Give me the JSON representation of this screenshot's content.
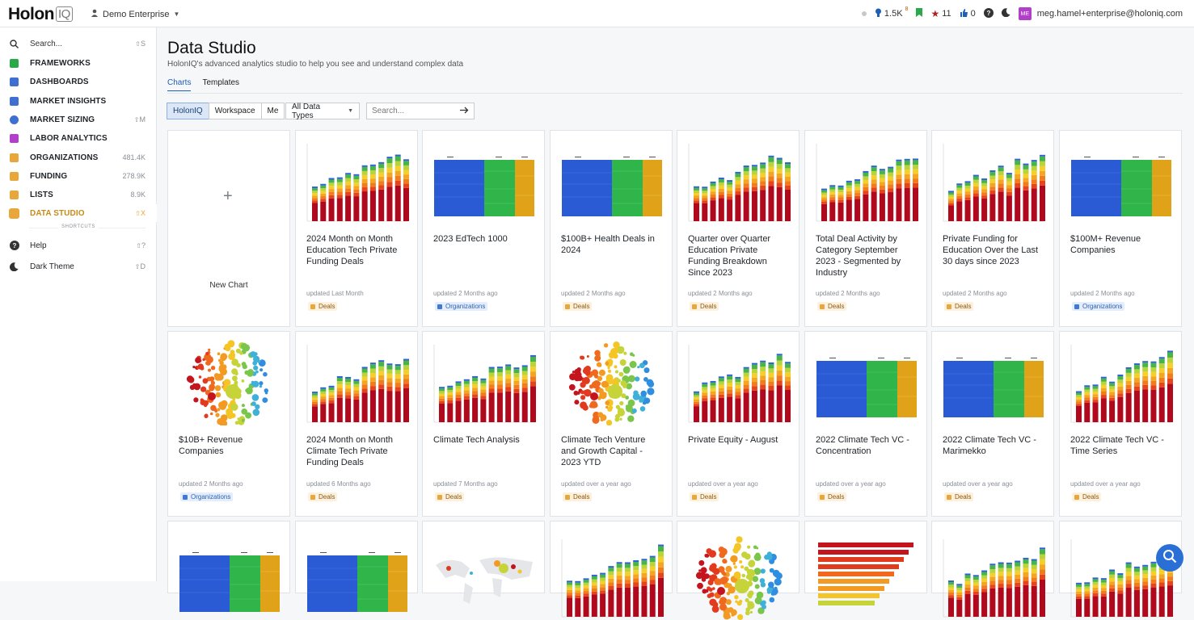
{
  "topbar": {
    "logo_main": "Holon",
    "logo_iq": "IQ",
    "enterprise": "Demo Enterprise",
    "stat_bulb": "1.5K",
    "stat_bulb_badge": "8",
    "stat_star": "11",
    "stat_thumb": "0",
    "user_initials": "ME",
    "user_email": "meg.hamel+enterprise@holoniq.com"
  },
  "sidebar": {
    "search_label": "Search...",
    "search_key": "S",
    "items": [
      {
        "label": "FRAMEWORKS",
        "meta": "",
        "color": "#2aa84a",
        "icon": "grid-icon"
      },
      {
        "label": "DASHBOARDS",
        "meta": "",
        "color": "#3f6fd1",
        "icon": "dashboard-icon"
      },
      {
        "label": "MARKET INSIGHTS",
        "meta": "",
        "color": "#3f6fd1",
        "icon": "insights-icon"
      },
      {
        "label": "MARKET SIZING",
        "meta": "M",
        "color": "#3f6fd1",
        "icon": "pie-icon"
      },
      {
        "label": "LABOR ANALYTICS",
        "meta": "",
        "color": "#b13fc9",
        "icon": "people-icon"
      },
      {
        "label": "ORGANIZATIONS",
        "meta": "481.4K",
        "color": "#e7a73a",
        "icon": "building-icon"
      },
      {
        "label": "FUNDING",
        "meta": "278.9K",
        "color": "#e7a73a",
        "icon": "funding-icon"
      },
      {
        "label": "LISTS",
        "meta": "8.9K",
        "color": "#e7a73a",
        "icon": "list-icon"
      },
      {
        "label": "DATA STUDIO",
        "meta": "X",
        "color": "#e7a73a",
        "icon": "chart-icon"
      }
    ],
    "shortcuts_label": "SHORTCUTS",
    "help_label": "Help",
    "help_key": "?",
    "dark_label": "Dark Theme",
    "dark_key": "D"
  },
  "main": {
    "title": "Data Studio",
    "subtitle": "HolonIQ's advanced analytics studio to help you see and understand complex data",
    "tabs": [
      "Charts",
      "Templates"
    ],
    "filters": [
      "HolonIQ",
      "Workspace",
      "Me"
    ],
    "data_type": "All Data Types",
    "search_placeholder": "Search...",
    "new_chart_label": "New Chart"
  },
  "cards": [
    {
      "title": "2024 Month on Month Education Tech Private Funding Deals",
      "updated": "updated Last Month",
      "tag": "Deals",
      "thumb": "bars"
    },
    {
      "title": "2023 EdTech 1000",
      "updated": "updated 2 Months ago",
      "tag": "Organizations",
      "thumb": "treemap"
    },
    {
      "title": "$100B+ Health Deals in 2024",
      "updated": "updated 2 Months ago",
      "tag": "Deals",
      "thumb": "treemap"
    },
    {
      "title": "Quarter over Quarter Education Private Funding Breakdown Since 2023",
      "updated": "updated 2 Months ago",
      "tag": "Deals",
      "thumb": "bars"
    },
    {
      "title": "Total Deal Activity by Category September 2023 - Segmented by Industry",
      "updated": "updated 2 Months ago",
      "tag": "Deals",
      "thumb": "bars"
    },
    {
      "title": "Private Funding for Education Over the Last 30 days since 2023",
      "updated": "updated 2 Months ago",
      "tag": "Deals",
      "thumb": "bars"
    },
    {
      "title": "$100M+ Revenue Companies",
      "updated": "updated 2 Months ago",
      "tag": "Organizations",
      "thumb": "treemap"
    },
    {
      "title": "$10B+ Revenue Companies",
      "updated": "updated 2 Months ago",
      "tag": "Organizations",
      "thumb": "bubbles"
    },
    {
      "title": "2024 Month on Month Climate Tech Private Funding Deals",
      "updated": "updated 6 Months ago",
      "tag": "Deals",
      "thumb": "bars"
    },
    {
      "title": "Climate Tech Analysis",
      "updated": "updated 7 Months ago",
      "tag": "Deals",
      "thumb": "bars"
    },
    {
      "title": "Climate Tech Venture and Growth Capital - 2023 YTD",
      "updated": "updated over a year ago",
      "tag": "Deals",
      "thumb": "bubbles"
    },
    {
      "title": "Private Equity - August",
      "updated": "updated over a year ago",
      "tag": "Deals",
      "thumb": "bars"
    },
    {
      "title": "2022 Climate Tech VC - Concentration",
      "updated": "updated over a year ago",
      "tag": "Deals",
      "thumb": "treemap"
    },
    {
      "title": "2022 Climate Tech VC - Marimekko",
      "updated": "updated over a year ago",
      "tag": "Deals",
      "thumb": "treemap"
    },
    {
      "title": "2022 Climate Tech VC - Time Series",
      "updated": "updated over a year ago",
      "tag": "Deals",
      "thumb": "bars"
    },
    {
      "title": "",
      "updated": "",
      "tag": "",
      "thumb": "treemap"
    },
    {
      "title": "",
      "updated": "",
      "tag": "",
      "thumb": "treemap"
    },
    {
      "title": "",
      "updated": "",
      "tag": "",
      "thumb": "map"
    },
    {
      "title": "",
      "updated": "",
      "tag": "",
      "thumb": "bars"
    },
    {
      "title": "",
      "updated": "",
      "tag": "",
      "thumb": "bubbles"
    },
    {
      "title": "",
      "updated": "",
      "tag": "",
      "thumb": "hbars"
    },
    {
      "title": "",
      "updated": "",
      "tag": "",
      "thumb": "bars"
    },
    {
      "title": "",
      "updated": "",
      "tag": "",
      "thumb": "bars"
    }
  ],
  "colors": {
    "accent": "#1b5fb8",
    "deals": "#e7a73a",
    "organizations": "#3f78d6"
  }
}
